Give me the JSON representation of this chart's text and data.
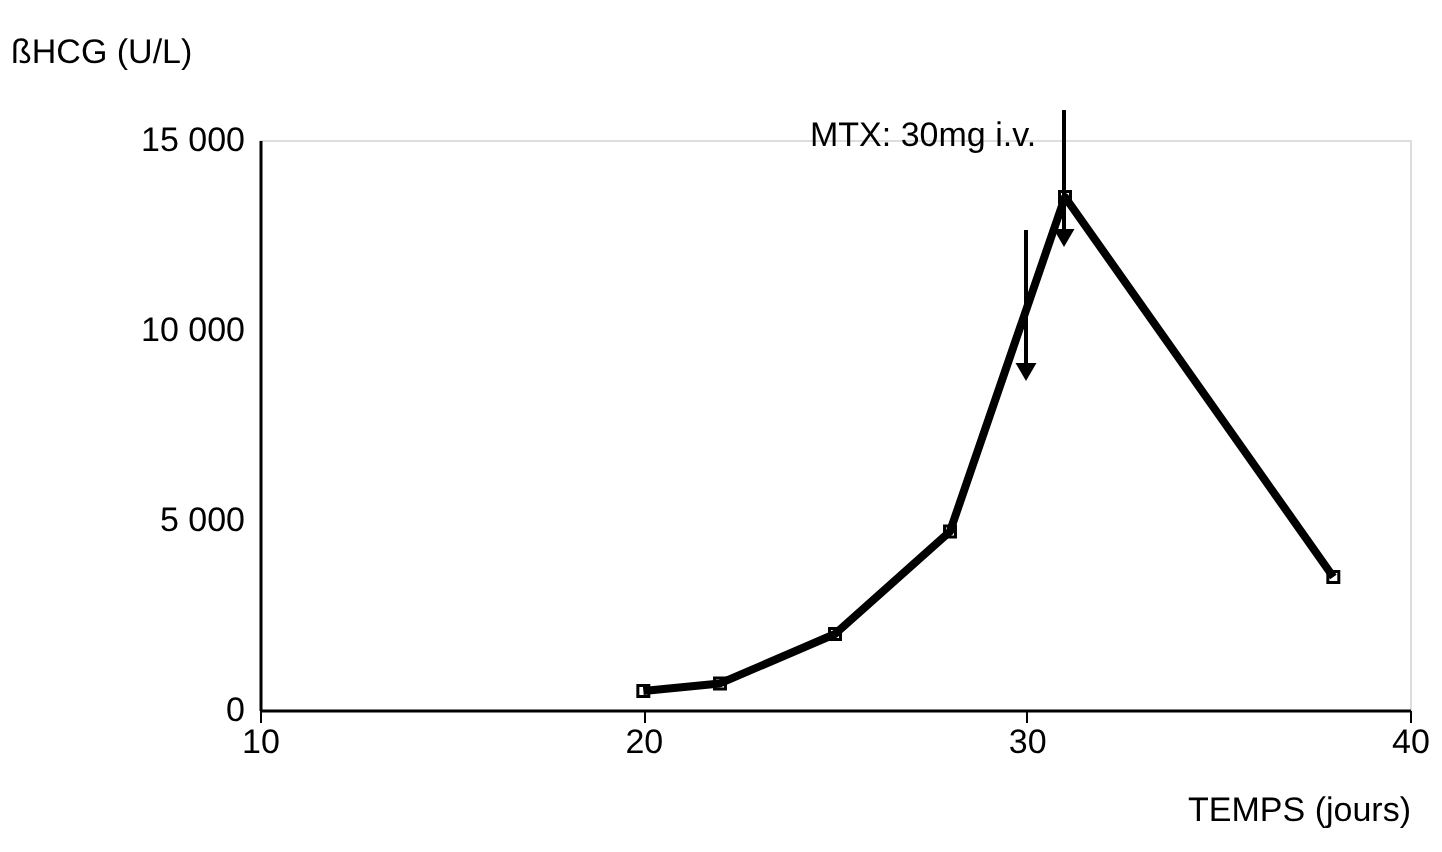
{
  "chart_data": {
    "type": "line",
    "xlabel": "TEMPS (jours)",
    "ylabel": "ßHCG (U/L)",
    "x": [
      20,
      22,
      25,
      28,
      31,
      38
    ],
    "series": [
      {
        "color": "#000000",
        "values": [
          500,
          700,
          2000,
          4700,
          13500,
          3500
        ]
      }
    ],
    "xlim": [
      10,
      40
    ],
    "xticks": [
      10,
      20,
      30,
      40
    ],
    "ylim": [
      0,
      15000
    ],
    "yticks": [
      0,
      {
        "value": 5000,
        "label": "5 000"
      },
      {
        "value": 10000,
        "label": "10 000"
      },
      {
        "value": 15000,
        "label": "15 000"
      }
    ],
    "annotations": [
      "MTX: 30mg i.v."
    ],
    "marker": "square",
    "line_style": "solid",
    "grid": false
  }
}
